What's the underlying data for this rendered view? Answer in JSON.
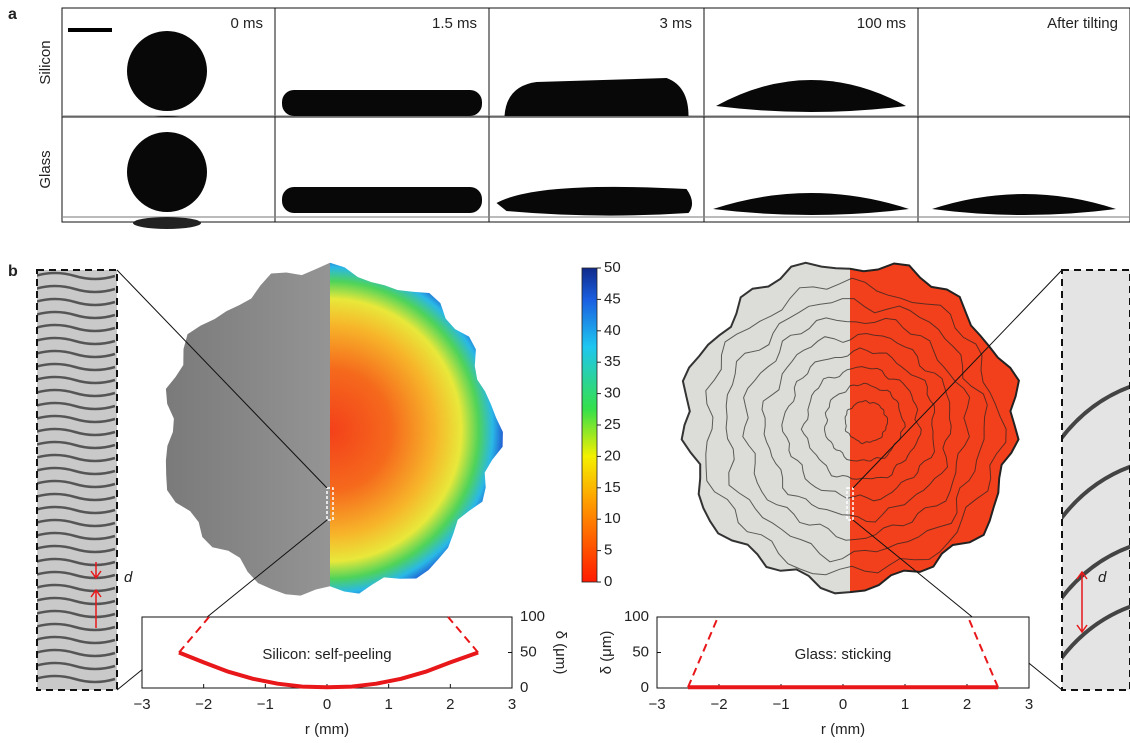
{
  "panel_a": {
    "label": "a",
    "rows": [
      "Silicon",
      "Glass"
    ],
    "times": [
      "0 ms",
      "1.5 ms",
      "3 ms",
      "100 ms",
      "After tilting"
    ]
  },
  "panel_b": {
    "label": "b",
    "inset_labels": [
      "d",
      "d"
    ],
    "colorbar": {
      "lim": [
        0,
        50
      ],
      "ticks": [
        0,
        5,
        10,
        15,
        20,
        25,
        30,
        35,
        40,
        45,
        50
      ]
    }
  },
  "chart_data": [
    {
      "type": "line",
      "annotation": "Silicon: self-peeling",
      "xlabel": "r (mm)",
      "ylabel": "δ (μm)",
      "xlim": [
        -3,
        3
      ],
      "ylim": [
        0,
        100
      ],
      "xticks": [
        {
          "value": -3,
          "label": "−3"
        },
        {
          "value": -2,
          "label": "−2"
        },
        {
          "value": -1,
          "label": "−1"
        },
        0,
        1,
        2,
        3
      ],
      "yticks": [
        0,
        50,
        100
      ],
      "color": "#e8171a",
      "x": [
        -2.4,
        -2.0,
        -1.6,
        -1.2,
        -0.8,
        -0.4,
        0,
        0.4,
        0.8,
        1.2,
        1.6,
        2.0,
        2.45
      ],
      "values": [
        50,
        36,
        23,
        13,
        6,
        2,
        1,
        2,
        6,
        13,
        23,
        36,
        50
      ]
    },
    {
      "type": "line",
      "annotation": "Glass: sticking",
      "xlabel": "r (mm)",
      "ylabel": "δ (μm)",
      "xlim": [
        -3,
        3
      ],
      "ylim": [
        0,
        100
      ],
      "xticks": [
        {
          "value": -3,
          "label": "−3"
        },
        {
          "value": -2,
          "label": "−2"
        },
        {
          "value": -1,
          "label": "−1"
        },
        0,
        1,
        2,
        3
      ],
      "yticks": [
        0,
        50,
        100
      ],
      "color": "#e8171a",
      "x": [
        -2.5,
        -2.0,
        -1.5,
        -1.0,
        -0.5,
        0,
        0.5,
        1.0,
        1.5,
        2.0,
        2.5
      ],
      "values": [
        1,
        1,
        1,
        1,
        1,
        1,
        1,
        1,
        1,
        1,
        1
      ]
    }
  ]
}
